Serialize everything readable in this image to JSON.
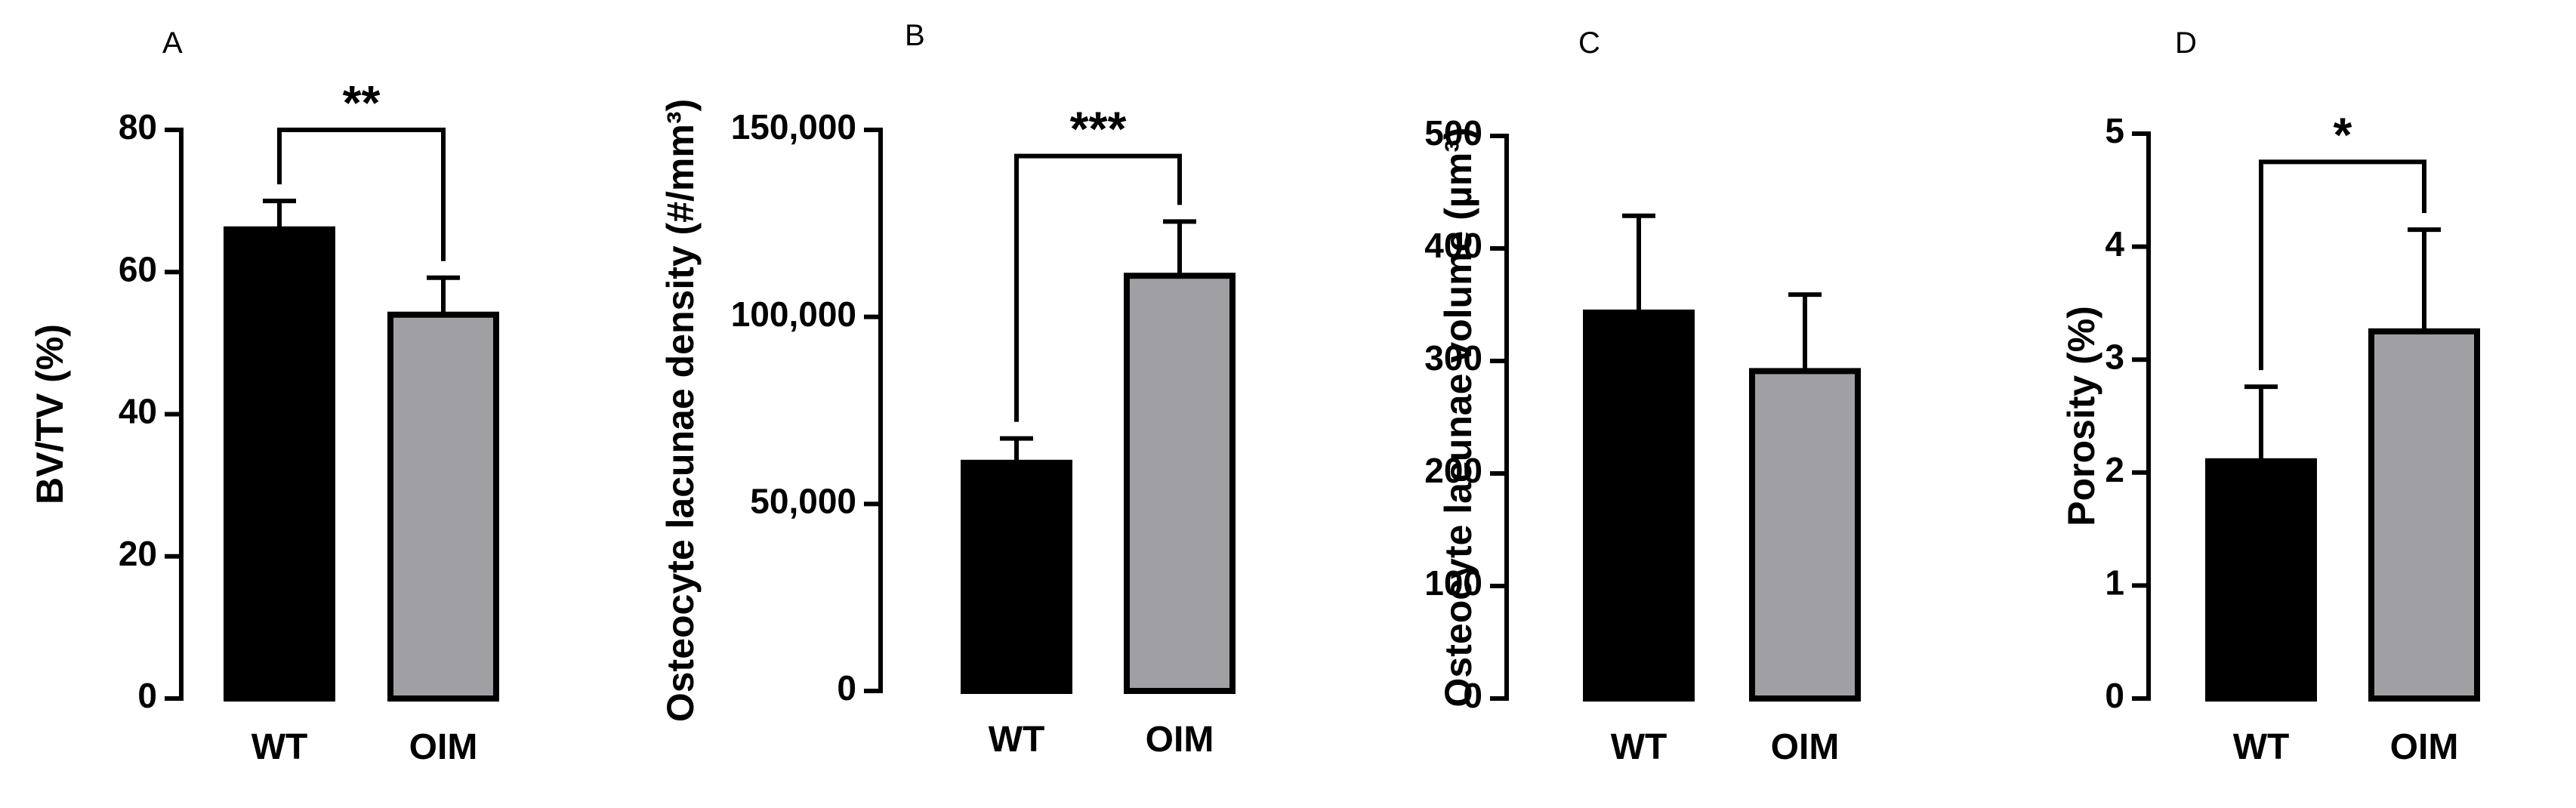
{
  "chart_data": [
    {
      "type": "bar",
      "panel": "A",
      "ylabel": "BV/TV (%)",
      "ylim": [
        0,
        80
      ],
      "yticks": [
        0,
        20,
        40,
        60,
        80
      ],
      "ytick_labels": [
        "0",
        "20",
        "40",
        "60",
        "80"
      ],
      "categories": [
        "WT",
        "OIM"
      ],
      "values": [
        66,
        54
      ],
      "errors": [
        4,
        5.2
      ],
      "colors": [
        "#000000",
        "#a0a0a4"
      ],
      "significance": {
        "label": "**",
        "bracket_top": 80
      }
    },
    {
      "type": "bar",
      "panel": "B",
      "ylabel": "Osteocyte lacunae density (#/mm³)",
      "ylim": [
        0,
        150000
      ],
      "yticks": [
        0,
        50000,
        100000,
        150000
      ],
      "ytick_labels": [
        "0",
        "50,000",
        "100,000",
        "150,000"
      ],
      "categories": [
        "WT",
        "OIM"
      ],
      "values": [
        61000,
        111000
      ],
      "errors": [
        6500,
        14500
      ],
      "colors": [
        "#000000",
        "#a0a0a4"
      ],
      "significance": {
        "label": "***",
        "bracket_top": 143000
      }
    },
    {
      "type": "bar",
      "panel": "C",
      "ylabel": "Osteocyte lacunae volume (µm³)",
      "ylim": [
        0,
        500
      ],
      "yticks": [
        0,
        100,
        200,
        300,
        400,
        500
      ],
      "ytick_labels": [
        "0",
        "100",
        "200",
        "300",
        "400",
        "500"
      ],
      "categories": [
        "WT",
        "OIM"
      ],
      "values": [
        343,
        291
      ],
      "errors": [
        86,
        68
      ],
      "colors": [
        "#000000",
        "#a0a0a4"
      ],
      "significance": null
    },
    {
      "type": "bar",
      "panel": "D",
      "ylabel": "Porosity (%)",
      "ylim": [
        0,
        5
      ],
      "yticks": [
        0,
        1,
        2,
        3,
        4,
        5
      ],
      "ytick_labels": [
        "0",
        "1",
        "2",
        "3",
        "4",
        "5"
      ],
      "categories": [
        "WT",
        "OIM"
      ],
      "values": [
        2.1,
        3.25
      ],
      "errors": [
        0.66,
        0.9
      ],
      "colors": [
        "#000000",
        "#a0a0a4"
      ],
      "significance": {
        "label": "*",
        "bracket_top": 4.75
      }
    }
  ]
}
